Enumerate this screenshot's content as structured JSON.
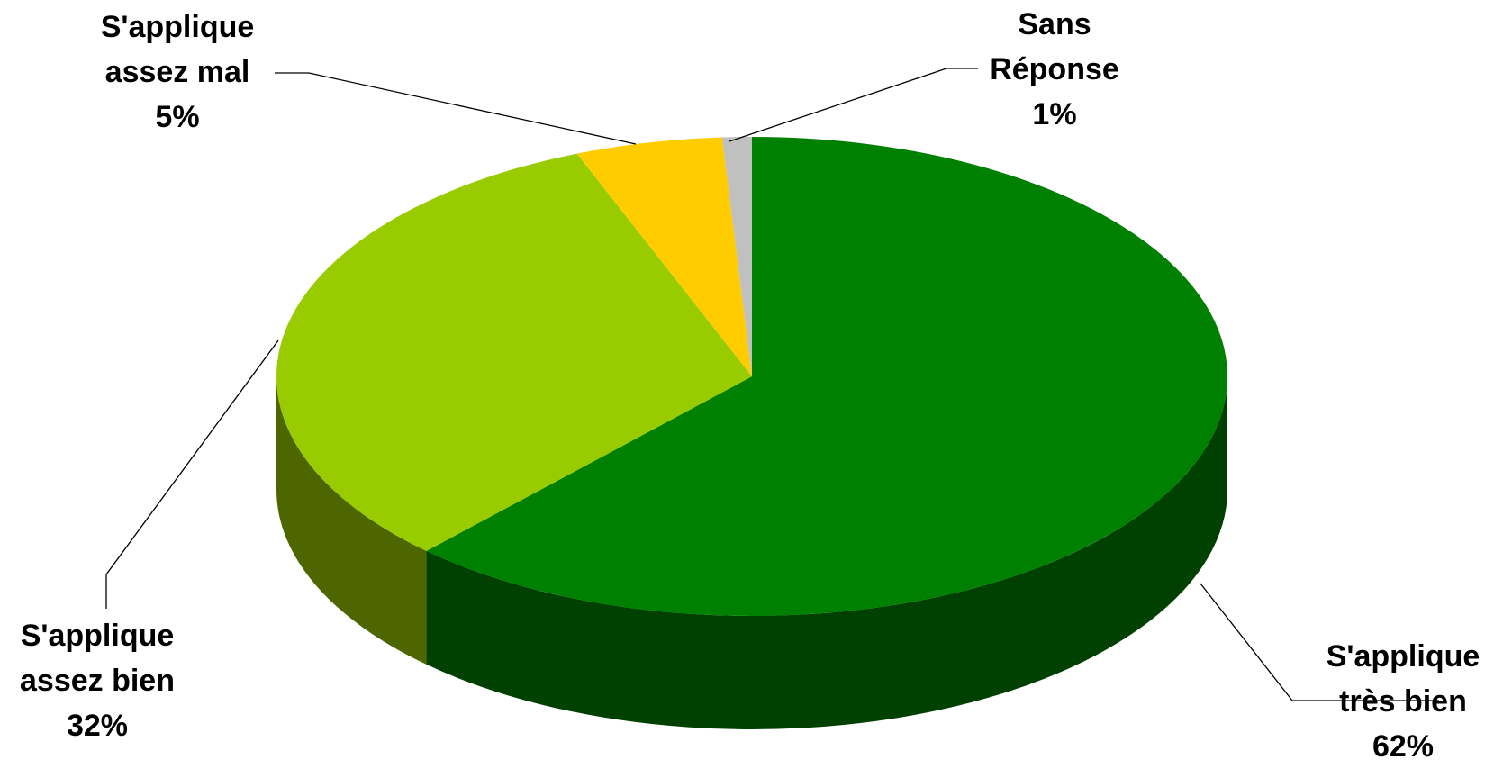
{
  "chart_data": {
    "type": "pie",
    "three_d": true,
    "title": "",
    "legend": "none",
    "slices": [
      {
        "label_lines": [
          "S'applique",
          "très bien"
        ],
        "value": 62,
        "display": "62%",
        "top_color": "#008000",
        "side_color": "#004000"
      },
      {
        "label_lines": [
          "S'applique",
          "assez bien"
        ],
        "value": 32,
        "display": "32%",
        "top_color": "#99CC00",
        "side_color": "#4D6600"
      },
      {
        "label_lines": [
          "S'applique",
          "assez mal"
        ],
        "value": 5,
        "display": "5%",
        "top_color": "#FFCC00",
        "side_color": "#806600"
      },
      {
        "label_lines": [
          "Sans",
          "Réponse"
        ],
        "value": 1,
        "display": "1%",
        "top_color": "#C0C0C0",
        "side_color": "#606060"
      }
    ]
  }
}
